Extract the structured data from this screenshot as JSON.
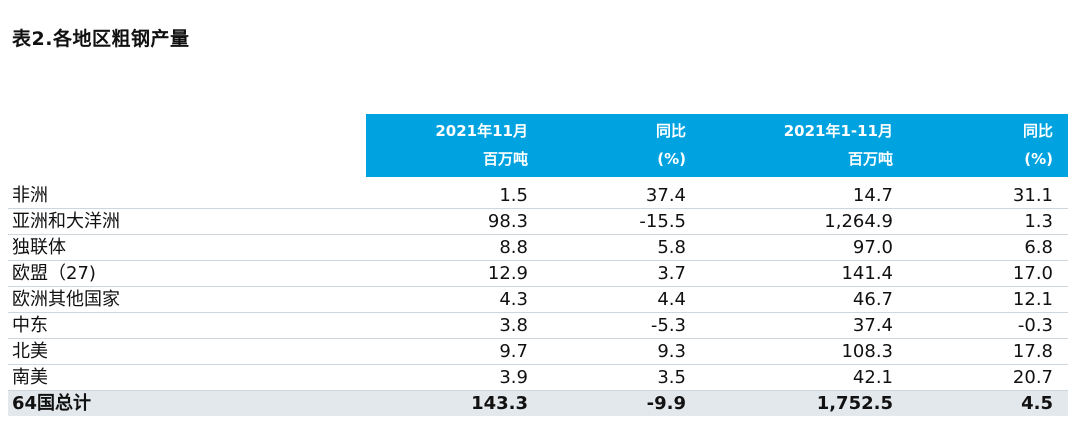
{
  "title": "表2.各地区粗钢产量",
  "headers": [
    {
      "line1": "2021年11月",
      "line2": "百万吨"
    },
    {
      "line1": "同比",
      "line2": "(%)"
    },
    {
      "line1": "2021年1-11月",
      "line2": "百万吨"
    },
    {
      "line1": "同比",
      "line2": "(%)"
    }
  ],
  "rows": [
    {
      "region": "非洲",
      "nov": "1.5",
      "nov_yoy": "37.4",
      "ytd": "14.7",
      "ytd_yoy": "31.1"
    },
    {
      "region": "亚洲和大洋洲",
      "nov": "98.3",
      "nov_yoy": "-15.5",
      "ytd": "1,264.9",
      "ytd_yoy": "1.3"
    },
    {
      "region": "独联体",
      "nov": "8.8",
      "nov_yoy": "5.8",
      "ytd": "97.0",
      "ytd_yoy": "6.8"
    },
    {
      "region": "欧盟（27)",
      "nov": "12.9",
      "nov_yoy": "3.7",
      "ytd": "141.4",
      "ytd_yoy": "17.0"
    },
    {
      "region": "欧洲其他国家",
      "nov": "4.3",
      "nov_yoy": "4.4",
      "ytd": "46.7",
      "ytd_yoy": "12.1"
    },
    {
      "region": "中东",
      "nov": "3.8",
      "nov_yoy": "-5.3",
      "ytd": "37.4",
      "ytd_yoy": "-0.3"
    },
    {
      "region": "北美",
      "nov": "9.7",
      "nov_yoy": "9.3",
      "ytd": "108.3",
      "ytd_yoy": "17.8"
    },
    {
      "region": "南美",
      "nov": "3.9",
      "nov_yoy": "3.5",
      "ytd": "42.1",
      "ytd_yoy": "20.7"
    }
  ],
  "total": {
    "region": "64国总计",
    "nov": "143.3",
    "nov_yoy": "-9.9",
    "ytd": "1,752.5",
    "ytd_yoy": "4.5"
  },
  "colors": {
    "header_bg": "#00a3e0",
    "total_bg": "#e3e8ec"
  }
}
